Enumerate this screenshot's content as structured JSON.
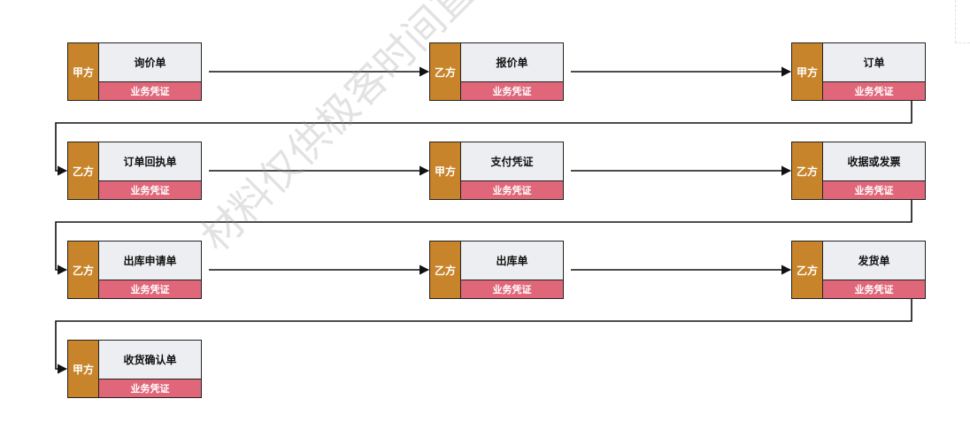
{
  "colors": {
    "party_fill": "#c8842a",
    "voucher_fill": "#e0677a",
    "doc_fill": "#eceef1",
    "line": "#111111"
  },
  "nodes": [
    {
      "party": "甲方",
      "doc": "询价单",
      "cert": "业务凭证"
    },
    {
      "party": "乙方",
      "doc": "报价单",
      "cert": "业务凭证"
    },
    {
      "party": "甲方",
      "doc": "订单",
      "cert": "业务凭证"
    },
    {
      "party": "乙方",
      "doc": "订单回执单",
      "cert": "业务凭证"
    },
    {
      "party": "甲方",
      "doc": "支付凭证",
      "cert": "业务凭证"
    },
    {
      "party": "乙方",
      "doc": "收据或发票",
      "cert": "业务凭证"
    },
    {
      "party": "乙方",
      "doc": "出库申请单",
      "cert": "业务凭证"
    },
    {
      "party": "乙方",
      "doc": "出库单",
      "cert": "业务凭证"
    },
    {
      "party": "乙方",
      "doc": "发货单",
      "cert": "业务凭证"
    },
    {
      "party": "甲方",
      "doc": "收货确认单",
      "cert": "业务凭证"
    }
  ],
  "watermark": "材料仅供极客时间直播课学习"
}
